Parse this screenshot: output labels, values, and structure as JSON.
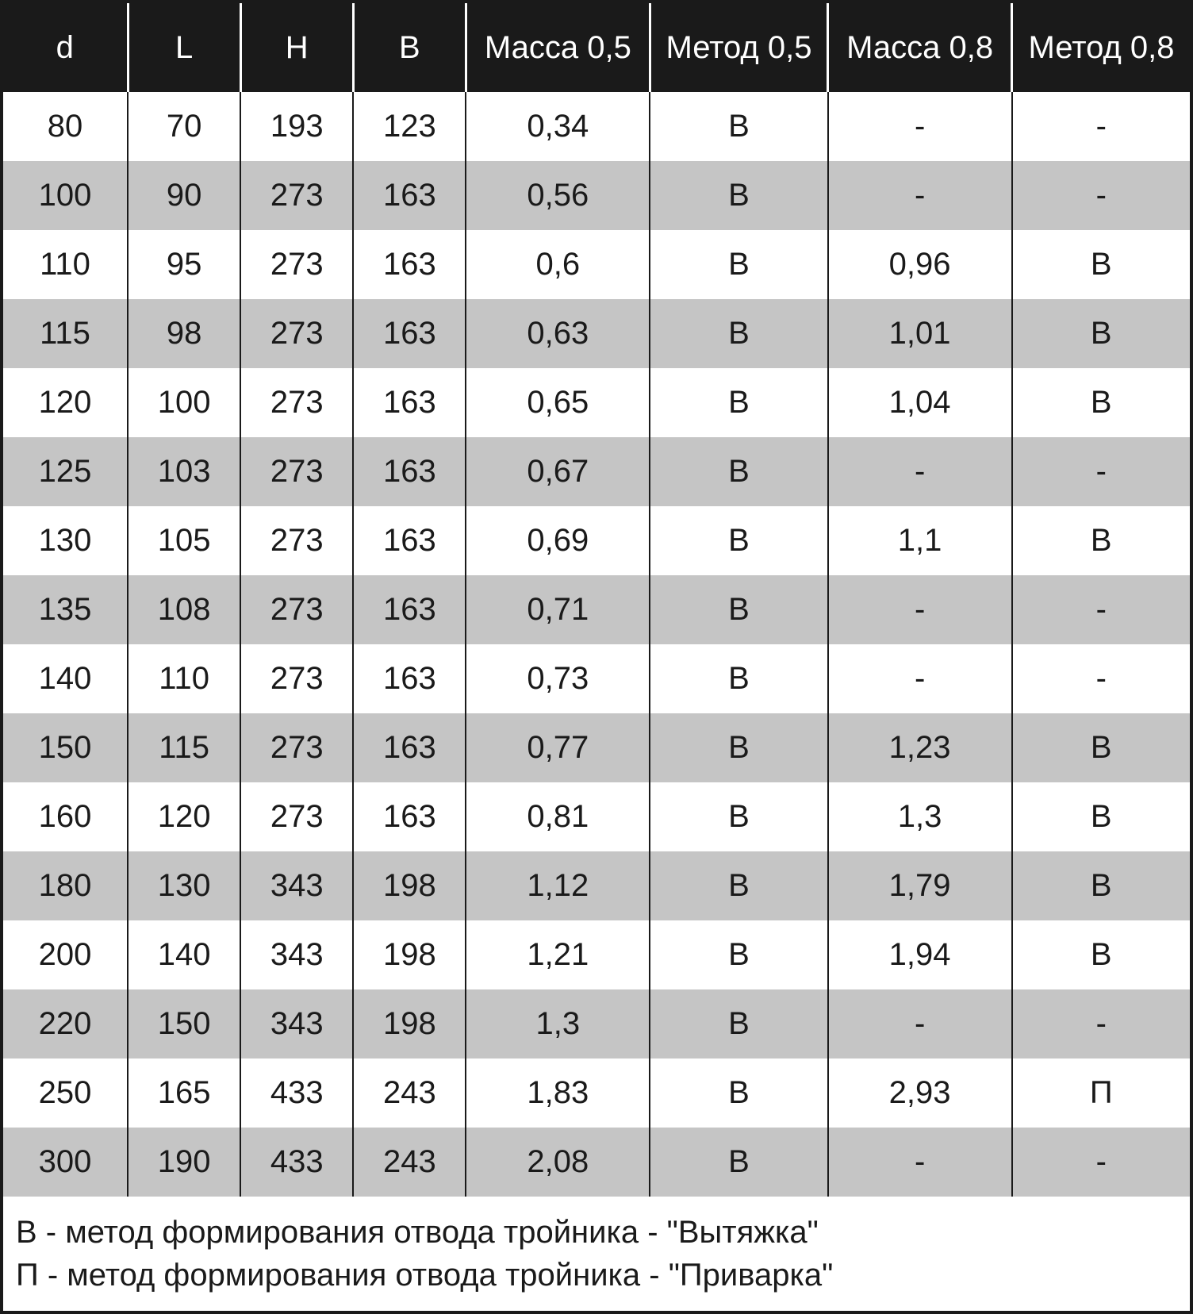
{
  "table": {
    "type": "table",
    "header_bg": "#1a1a1a",
    "header_fg": "#ffffff",
    "row_odd_bg": "#ffffff",
    "row_even_bg": "#c5c5c5",
    "border_color": "#1a1a1a",
    "font_family": "Arial",
    "header_fontsize_pt": 30,
    "cell_fontsize_pt": 30,
    "columns": [
      {
        "key": "d",
        "label": "d",
        "width_pct": 10.5
      },
      {
        "key": "L",
        "label": "L",
        "width_pct": 9.5
      },
      {
        "key": "H",
        "label": "H",
        "width_pct": 9.5
      },
      {
        "key": "B",
        "label": "B",
        "width_pct": 9.5
      },
      {
        "key": "mass05",
        "label": "Масса 0,5",
        "width_pct": 15.5
      },
      {
        "key": "meth05",
        "label": "Метод 0,5",
        "width_pct": 15.0
      },
      {
        "key": "mass08",
        "label": "Масса 0,8",
        "width_pct": 15.5
      },
      {
        "key": "meth08",
        "label": "Метод 0,8",
        "width_pct": 15.0
      }
    ],
    "rows": [
      [
        "80",
        "70",
        "193",
        "123",
        "0,34",
        "В",
        "-",
        "-"
      ],
      [
        "100",
        "90",
        "273",
        "163",
        "0,56",
        "В",
        "-",
        "-"
      ],
      [
        "110",
        "95",
        "273",
        "163",
        "0,6",
        "В",
        "0,96",
        "В"
      ],
      [
        "115",
        "98",
        "273",
        "163",
        "0,63",
        "В",
        "1,01",
        "В"
      ],
      [
        "120",
        "100",
        "273",
        "163",
        "0,65",
        "В",
        "1,04",
        "В"
      ],
      [
        "125",
        "103",
        "273",
        "163",
        "0,67",
        "В",
        "-",
        "-"
      ],
      [
        "130",
        "105",
        "273",
        "163",
        "0,69",
        "В",
        "1,1",
        "В"
      ],
      [
        "135",
        "108",
        "273",
        "163",
        "0,71",
        "В",
        "-",
        "-"
      ],
      [
        "140",
        "110",
        "273",
        "163",
        "0,73",
        "В",
        "-",
        "-"
      ],
      [
        "150",
        "115",
        "273",
        "163",
        "0,77",
        "В",
        "1,23",
        "В"
      ],
      [
        "160",
        "120",
        "273",
        "163",
        "0,81",
        "В",
        "1,3",
        "В"
      ],
      [
        "180",
        "130",
        "343",
        "198",
        "1,12",
        "В",
        "1,79",
        "В"
      ],
      [
        "200",
        "140",
        "343",
        "198",
        "1,21",
        "В",
        "1,94",
        "В"
      ],
      [
        "220",
        "150",
        "343",
        "198",
        "1,3",
        "В",
        "-",
        "-"
      ],
      [
        "250",
        "165",
        "433",
        "243",
        "1,83",
        "В",
        "2,93",
        "П"
      ],
      [
        "300",
        "190",
        "433",
        "243",
        "2,08",
        "В",
        "-",
        "-"
      ]
    ]
  },
  "legend": {
    "line1": "В - метод формирования отвода тройника - \"Вытяжка\"",
    "line2": "П - метод формирования отвода тройника - \"Приварка\""
  }
}
